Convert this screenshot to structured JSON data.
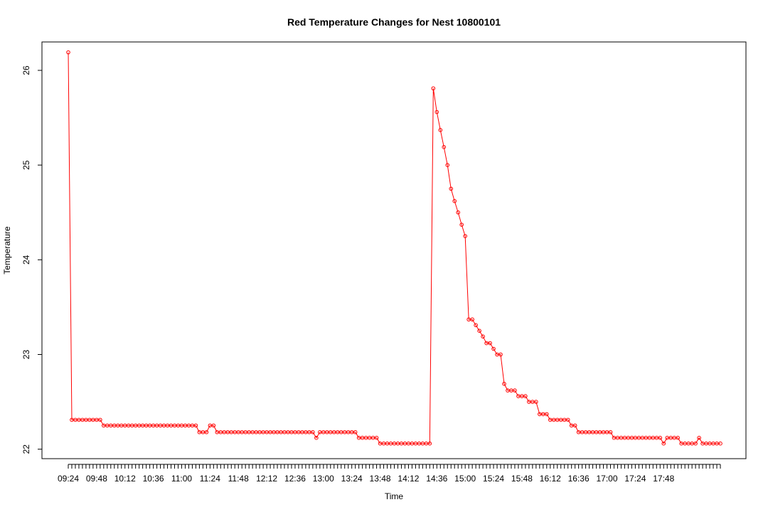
{
  "chart_data": {
    "type": "line",
    "title": "Red Temperature Changes for Nest 10800101",
    "xlabel": "Time",
    "ylabel": "Temperature",
    "color": "#ff0000",
    "ylim": [
      21.9,
      26.3
    ],
    "yticks": [
      22,
      23,
      24,
      25,
      26
    ],
    "xtick_labels": [
      "09:24",
      "09:48",
      "10:12",
      "10:36",
      "11:00",
      "11:24",
      "11:48",
      "12:12",
      "12:36",
      "13:00",
      "13:24",
      "13:48",
      "14:12",
      "14:36",
      "15:00",
      "15:24",
      "15:48",
      "16:12",
      "16:36",
      "17:00",
      "17:24",
      "17:48"
    ],
    "x_start": "09:24",
    "x_interval_minutes": 3,
    "values": [
      26.19,
      22.31,
      22.31,
      22.31,
      22.31,
      22.31,
      22.31,
      22.31,
      22.31,
      22.31,
      22.25,
      22.25,
      22.25,
      22.25,
      22.25,
      22.25,
      22.25,
      22.25,
      22.25,
      22.25,
      22.25,
      22.25,
      22.25,
      22.25,
      22.25,
      22.25,
      22.25,
      22.25,
      22.25,
      22.25,
      22.25,
      22.25,
      22.25,
      22.25,
      22.25,
      22.25,
      22.25,
      22.18,
      22.18,
      22.18,
      22.25,
      22.25,
      22.18,
      22.18,
      22.18,
      22.18,
      22.18,
      22.18,
      22.18,
      22.18,
      22.18,
      22.18,
      22.18,
      22.18,
      22.18,
      22.18,
      22.18,
      22.18,
      22.18,
      22.18,
      22.18,
      22.18,
      22.18,
      22.18,
      22.18,
      22.18,
      22.18,
      22.18,
      22.18,
      22.18,
      22.12,
      22.18,
      22.18,
      22.18,
      22.18,
      22.18,
      22.18,
      22.18,
      22.18,
      22.18,
      22.18,
      22.18,
      22.12,
      22.12,
      22.12,
      22.12,
      22.12,
      22.12,
      22.06,
      22.06,
      22.06,
      22.06,
      22.06,
      22.06,
      22.06,
      22.06,
      22.06,
      22.06,
      22.06,
      22.06,
      22.06,
      22.06,
      22.06,
      25.81,
      25.56,
      25.37,
      25.19,
      25.0,
      24.75,
      24.62,
      24.5,
      24.37,
      24.25,
      23.37,
      23.37,
      23.31,
      23.25,
      23.19,
      23.12,
      23.12,
      23.06,
      23.0,
      23.0,
      22.69,
      22.62,
      22.62,
      22.62,
      22.56,
      22.56,
      22.56,
      22.5,
      22.5,
      22.5,
      22.37,
      22.37,
      22.37,
      22.31,
      22.31,
      22.31,
      22.31,
      22.31,
      22.31,
      22.25,
      22.25,
      22.18,
      22.18,
      22.18,
      22.18,
      22.18,
      22.18,
      22.18,
      22.18,
      22.18,
      22.18,
      22.12,
      22.12,
      22.12,
      22.12,
      22.12,
      22.12,
      22.12,
      22.12,
      22.12,
      22.12,
      22.12,
      22.12,
      22.12,
      22.12,
      22.06,
      22.12,
      22.12,
      22.12,
      22.12,
      22.06,
      22.06,
      22.06,
      22.06,
      22.06,
      22.12,
      22.06,
      22.06,
      22.06,
      22.06,
      22.06,
      22.06
    ]
  }
}
